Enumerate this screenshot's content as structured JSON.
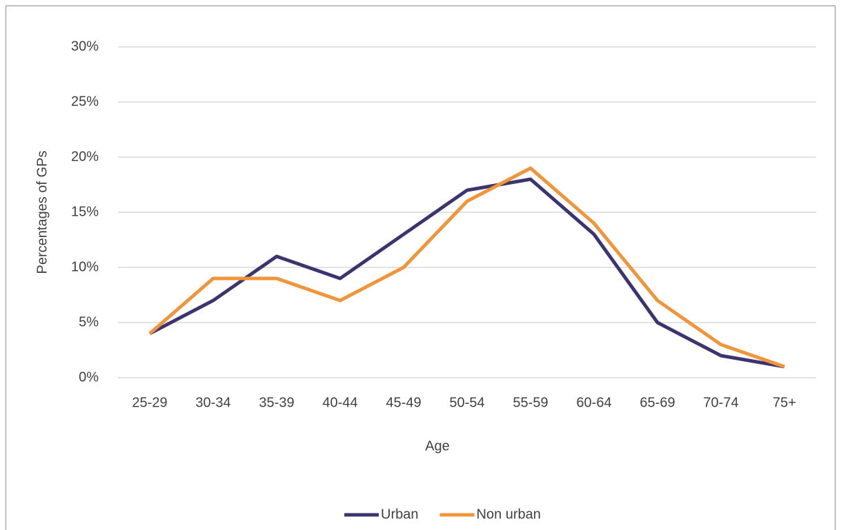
{
  "chart_data": {
    "type": "line",
    "x_label": "Age",
    "y_label": "Percentages of GPs",
    "categories": [
      "25-29",
      "30-34",
      "35-39",
      "40-44",
      "45-49",
      "50-54",
      "55-59",
      "60-64",
      "65-69",
      "70-74",
      "75+"
    ],
    "series": [
      {
        "name": "Urban",
        "color": "#3b3470",
        "values": [
          4,
          7,
          11,
          9,
          13,
          17,
          18,
          13,
          5,
          2,
          1
        ]
      },
      {
        "name": "Non urban",
        "color": "#f0953a",
        "values": [
          4,
          9,
          9,
          7,
          10,
          16,
          19,
          14,
          7,
          3,
          1
        ]
      }
    ],
    "ylim": [
      0,
      30
    ],
    "yticks": [
      {
        "value": 0,
        "label": "0%"
      },
      {
        "value": 5,
        "label": "5%"
      },
      {
        "value": 10,
        "label": "10%"
      },
      {
        "value": 15,
        "label": "15%"
      },
      {
        "value": 20,
        "label": "20%"
      },
      {
        "value": 25,
        "label": "25%"
      },
      {
        "value": 30,
        "label": "30%"
      }
    ],
    "grid": true,
    "legend": "bottom"
  }
}
